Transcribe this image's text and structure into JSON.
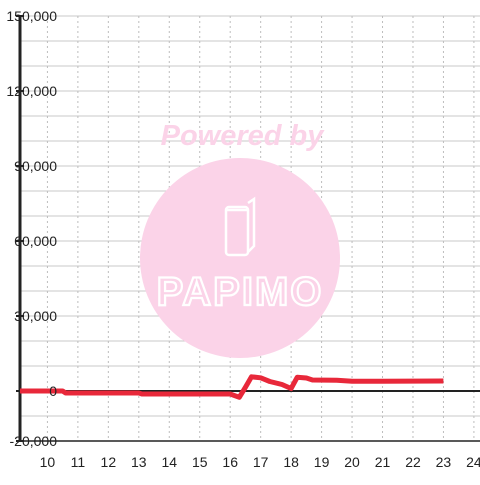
{
  "chart_data": {
    "type": "line",
    "title": "",
    "xlabel": "",
    "ylabel": "",
    "xlim": [
      9.1,
      24.2
    ],
    "ylim": [
      -20000,
      150000
    ],
    "x_ticks": [
      10,
      11,
      12,
      13,
      14,
      15,
      16,
      17,
      18,
      19,
      20,
      21,
      22,
      23,
      24
    ],
    "x_tick_labels": [
      "10",
      "11",
      "12",
      "13",
      "14",
      "15",
      "16",
      "17",
      "18",
      "19",
      "20",
      "21",
      "22",
      "23",
      "24"
    ],
    "y_ticks": [
      -20000,
      0,
      30000,
      60000,
      90000,
      120000,
      150000
    ],
    "y_tick_labels": [
      "-20,000",
      "0",
      "30,000",
      "60,000",
      "90,000",
      "120,000",
      "150,000"
    ],
    "grid": {
      "x": "dotted",
      "y": "solid"
    },
    "legend": "none",
    "series": [
      {
        "color": "#e8283a",
        "x": [
          9.1,
          10.5,
          10.6,
          13.0,
          13.1,
          16.0,
          16.3,
          16.5,
          16.7,
          17.0,
          17.3,
          17.7,
          18.0,
          18.2,
          18.5,
          18.7,
          19.5,
          20.0,
          23.0
        ],
        "y": [
          0,
          0,
          -800,
          -800,
          -1200,
          -1200,
          -2500,
          1500,
          5700,
          5300,
          3800,
          2600,
          1000,
          5500,
          5200,
          4400,
          4300,
          3900,
          4000
        ]
      }
    ]
  },
  "watermark": {
    "text": "Powered by",
    "logo_text": "PAPIMO",
    "color": "#fbd3e8"
  },
  "colors": {
    "axis": "#222222",
    "grid_major": "#c8c8c8",
    "grid_minor": "#bdbdbd",
    "tick_label": "#222222",
    "background": "#ffffff"
  }
}
